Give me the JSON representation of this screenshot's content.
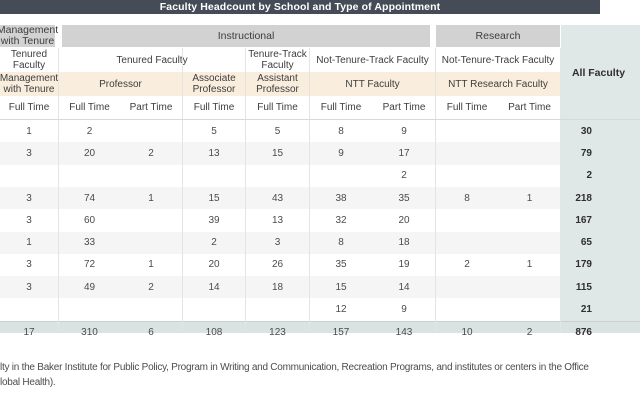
{
  "title": "Faculty Headcount by School and Type of Appointment",
  "header": {
    "row1": {
      "mgmt": "Management with Tenure",
      "instructional": "Instructional",
      "research": "Research"
    },
    "row2": {
      "mgmt": "Tenured Faculty",
      "tenured": "Tenured Faculty",
      "tenure_track": "Tenure-Track Faculty",
      "ntt": "Not-Tenure-Track Faculty",
      "ntt_research": "Not-Tenure-Track Faculty"
    },
    "row3": {
      "mgmt": "Management with Tenure",
      "professor": "Professor",
      "associate": "Associate Professor",
      "assistant": "Assistant Professor",
      "ntt": "NTT Faculty",
      "ntt_research": "NTT Research Faculty"
    },
    "row4": [
      "Full Time",
      "Full Time",
      "Part Time",
      "Full Time",
      "Full Time",
      "Full Time",
      "Part Time",
      "Full Time",
      "Part Time"
    ],
    "all_faculty": "All Faculty"
  },
  "chart_data": {
    "type": "table",
    "title": "Faculty Headcount by School and Type of Appointment",
    "columns": [
      "Management with Tenure Full Time",
      "Professor Full Time",
      "Professor Part Time",
      "Associate Professor Full Time",
      "Assistant Professor Full Time",
      "NTT Faculty Full Time",
      "NTT Faculty Part Time",
      "NTT Research Faculty Full Time",
      "NTT Research Faculty Part Time",
      "All Faculty"
    ],
    "rows": [
      [
        "1",
        "2",
        "",
        "5",
        "5",
        "8",
        "9",
        "",
        "",
        "30"
      ],
      [
        "3",
        "20",
        "2",
        "13",
        "15",
        "9",
        "17",
        "",
        "",
        "79"
      ],
      [
        "",
        "",
        "",
        "",
        "",
        "",
        "2",
        "",
        "",
        "2"
      ],
      [
        "3",
        "74",
        "1",
        "15",
        "43",
        "38",
        "35",
        "8",
        "1",
        "218"
      ],
      [
        "3",
        "60",
        "",
        "39",
        "13",
        "32",
        "20",
        "",
        "",
        "167"
      ],
      [
        "1",
        "33",
        "",
        "2",
        "3",
        "8",
        "18",
        "",
        "",
        "65"
      ],
      [
        "3",
        "72",
        "1",
        "20",
        "26",
        "35",
        "19",
        "2",
        "1",
        "179"
      ],
      [
        "3",
        "49",
        "2",
        "14",
        "18",
        "15",
        "14",
        "",
        "",
        "115"
      ],
      [
        "",
        "",
        "",
        "",
        "",
        "12",
        "9",
        "",
        "",
        "21"
      ]
    ],
    "totals": [
      "17",
      "310",
      "6",
      "108",
      "123",
      "157",
      "143",
      "10",
      "2",
      "876"
    ]
  },
  "footnote": {
    "line1": "lty in the Baker Institute for Public Policy, Program in Writing and Communication, Recreation Programs, and institutes or centers in the Office",
    "line2": "lobal Health)."
  },
  "colors": {
    "title_bar": "#454b57",
    "group_header": "#d2d2d2",
    "subheader_band": "#f9eedd",
    "all_faculty_column": "#dfe8e7",
    "alt_row": "#f5f5f5",
    "totals_row": "#d9e4e2"
  }
}
